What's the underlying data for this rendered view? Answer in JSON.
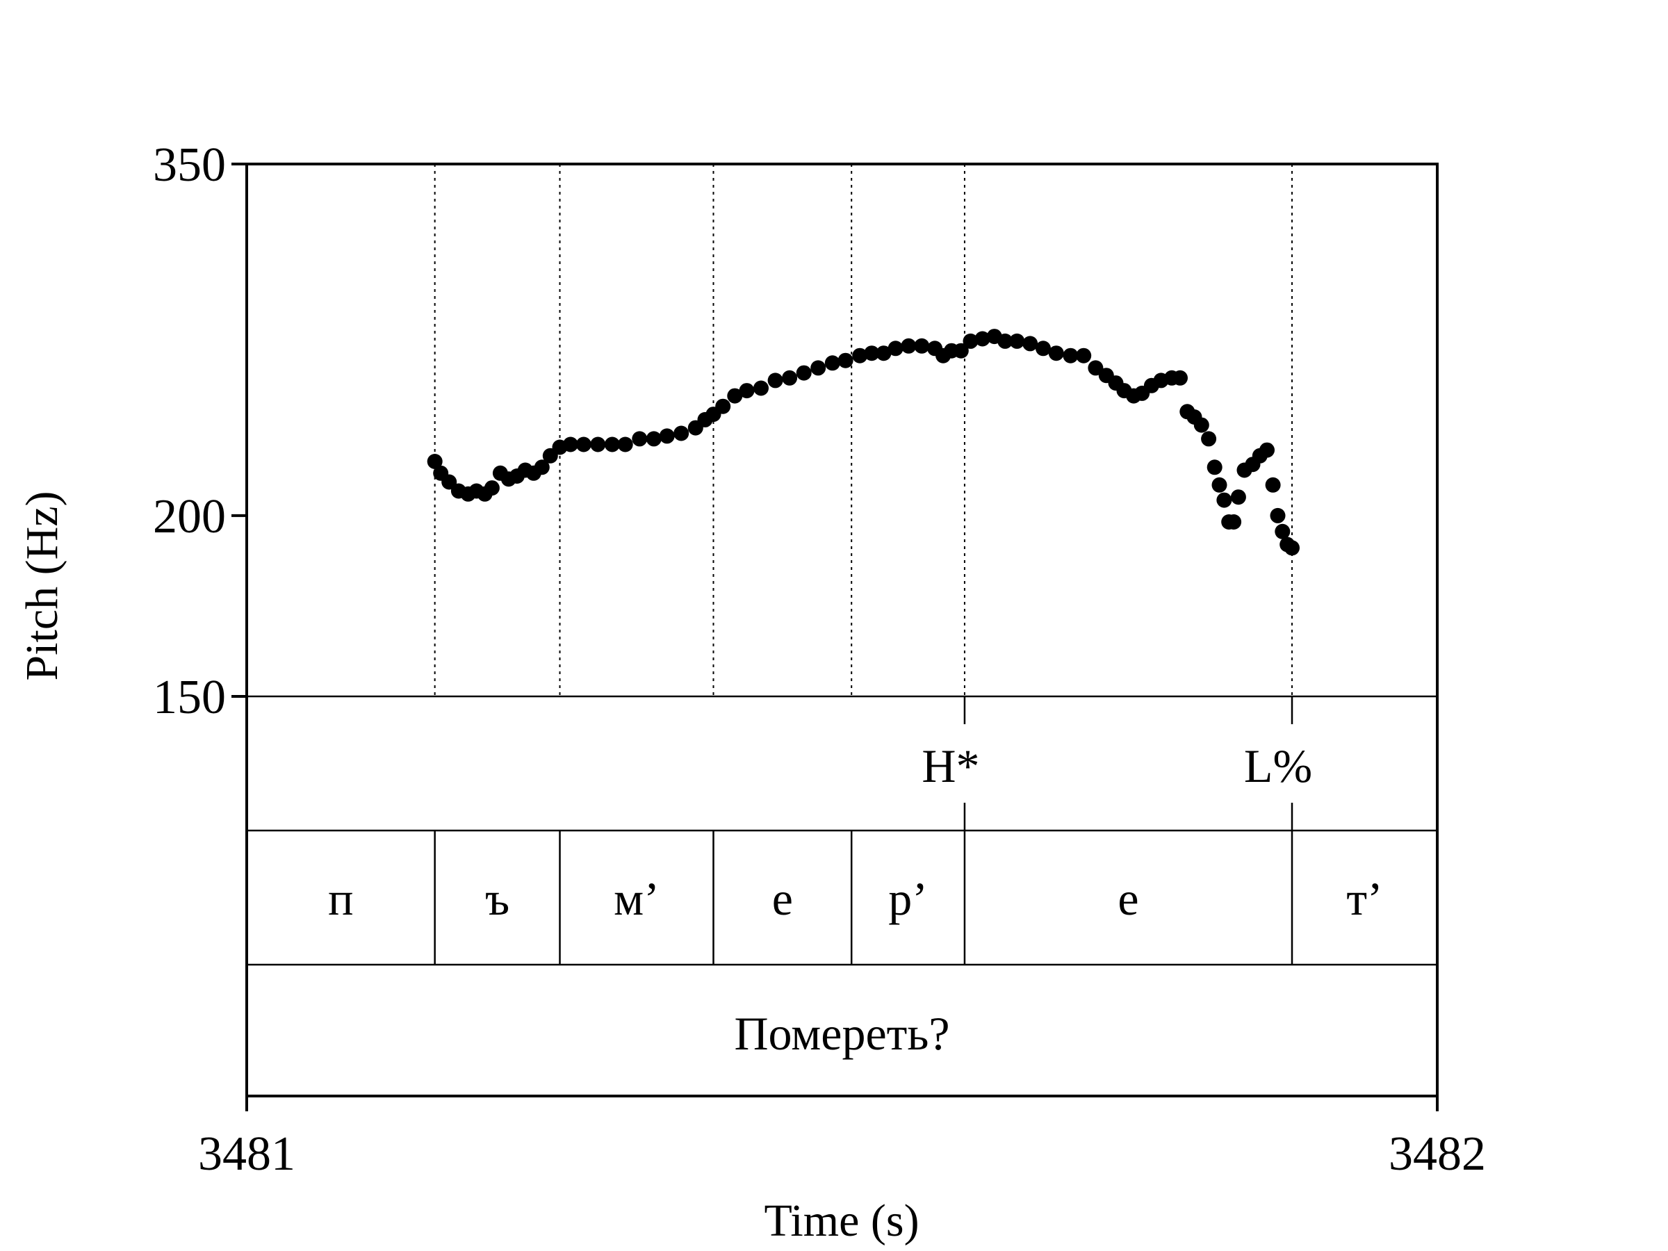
{
  "chart_data": {
    "type": "scatter",
    "xlabel": "Time (s)",
    "ylabel": "Pitch (Hz)",
    "xlim": [
      3481,
      3482
    ],
    "ylim": [
      150,
      350
    ],
    "y_scale": "log",
    "x_ticks": [
      "3481",
      "3482"
    ],
    "y_ticks": [
      {
        "value": 150,
        "label": "150"
      },
      {
        "value": 200,
        "label": "200"
      },
      {
        "value": 350,
        "label": "350"
      }
    ],
    "boundaries": [
      3481.158,
      3481.263,
      3481.392,
      3481.508,
      3481.603,
      3481.878
    ],
    "tiers": {
      "tones": [
        {
          "label": "H*",
          "time": 3481.603
        },
        {
          "label": "L%",
          "time": 3481.878
        }
      ],
      "segments": [
        {
          "label": "п",
          "start": 3481.0,
          "end": 3481.158
        },
        {
          "label": "ъ",
          "start": 3481.158,
          "end": 3481.263
        },
        {
          "label": "м’",
          "start": 3481.263,
          "end": 3481.392
        },
        {
          "label": "е",
          "start": 3481.392,
          "end": 3481.508
        },
        {
          "label": "р’",
          "start": 3481.508,
          "end": 3481.603
        },
        {
          "label": "е",
          "start": 3481.603,
          "end": 3481.878
        },
        {
          "label": "т’",
          "start": 3481.878,
          "end": 3482.0
        }
      ],
      "word": {
        "label": "Помереть?",
        "start": 3481.0,
        "end": 3482.0
      }
    },
    "points": [
      [
        3481.158,
        218
      ],
      [
        3481.163,
        214
      ],
      [
        3481.17,
        211
      ],
      [
        3481.178,
        208
      ],
      [
        3481.186,
        207
      ],
      [
        3481.193,
        208
      ],
      [
        3481.2,
        207
      ],
      [
        3481.206,
        209
      ],
      [
        3481.213,
        214
      ],
      [
        3481.22,
        212
      ],
      [
        3481.227,
        213
      ],
      [
        3481.234,
        215
      ],
      [
        3481.241,
        214
      ],
      [
        3481.248,
        216
      ],
      [
        3481.255,
        220
      ],
      [
        3481.263,
        223
      ],
      [
        3481.272,
        224
      ],
      [
        3481.283,
        224
      ],
      [
        3481.295,
        224
      ],
      [
        3481.307,
        224
      ],
      [
        3481.318,
        224
      ],
      [
        3481.33,
        226
      ],
      [
        3481.342,
        226
      ],
      [
        3481.353,
        227
      ],
      [
        3481.365,
        228
      ],
      [
        3481.377,
        230
      ],
      [
        3481.385,
        233
      ],
      [
        3481.392,
        235
      ],
      [
        3481.4,
        238
      ],
      [
        3481.41,
        242
      ],
      [
        3481.42,
        244
      ],
      [
        3481.432,
        245
      ],
      [
        3481.444,
        248
      ],
      [
        3481.456,
        249
      ],
      [
        3481.468,
        251
      ],
      [
        3481.48,
        253
      ],
      [
        3481.492,
        255
      ],
      [
        3481.503,
        256
      ],
      [
        3481.515,
        258
      ],
      [
        3481.525,
        259
      ],
      [
        3481.535,
        259
      ],
      [
        3481.545,
        261
      ],
      [
        3481.556,
        262
      ],
      [
        3481.567,
        262
      ],
      [
        3481.578,
        261
      ],
      [
        3481.585,
        258
      ],
      [
        3481.592,
        260
      ],
      [
        3481.6,
        260
      ],
      [
        3481.608,
        264
      ],
      [
        3481.618,
        265
      ],
      [
        3481.628,
        266
      ],
      [
        3481.637,
        264
      ],
      [
        3481.647,
        264
      ],
      [
        3481.658,
        263
      ],
      [
        3481.669,
        261
      ],
      [
        3481.68,
        259
      ],
      [
        3481.692,
        258
      ],
      [
        3481.703,
        258
      ],
      [
        3481.713,
        253
      ],
      [
        3481.722,
        250
      ],
      [
        3481.73,
        247
      ],
      [
        3481.737,
        244
      ],
      [
        3481.745,
        242
      ],
      [
        3481.752,
        243
      ],
      [
        3481.76,
        246
      ],
      [
        3481.768,
        248
      ],
      [
        3481.777,
        249
      ],
      [
        3481.784,
        249
      ],
      [
        3481.79,
        236
      ],
      [
        3481.796,
        234
      ],
      [
        3481.802,
        231
      ],
      [
        3481.808,
        226
      ],
      [
        3481.813,
        216
      ],
      [
        3481.817,
        210
      ],
      [
        3481.821,
        205
      ],
      [
        3481.825,
        198
      ],
      [
        3481.829,
        198
      ],
      [
        3481.833,
        206
      ],
      [
        3481.838,
        215
      ],
      [
        3481.845,
        217
      ],
      [
        3481.851,
        220
      ],
      [
        3481.857,
        222
      ],
      [
        3481.862,
        210
      ],
      [
        3481.866,
        200
      ],
      [
        3481.87,
        195
      ],
      [
        3481.874,
        191
      ],
      [
        3481.878,
        190
      ]
    ]
  }
}
